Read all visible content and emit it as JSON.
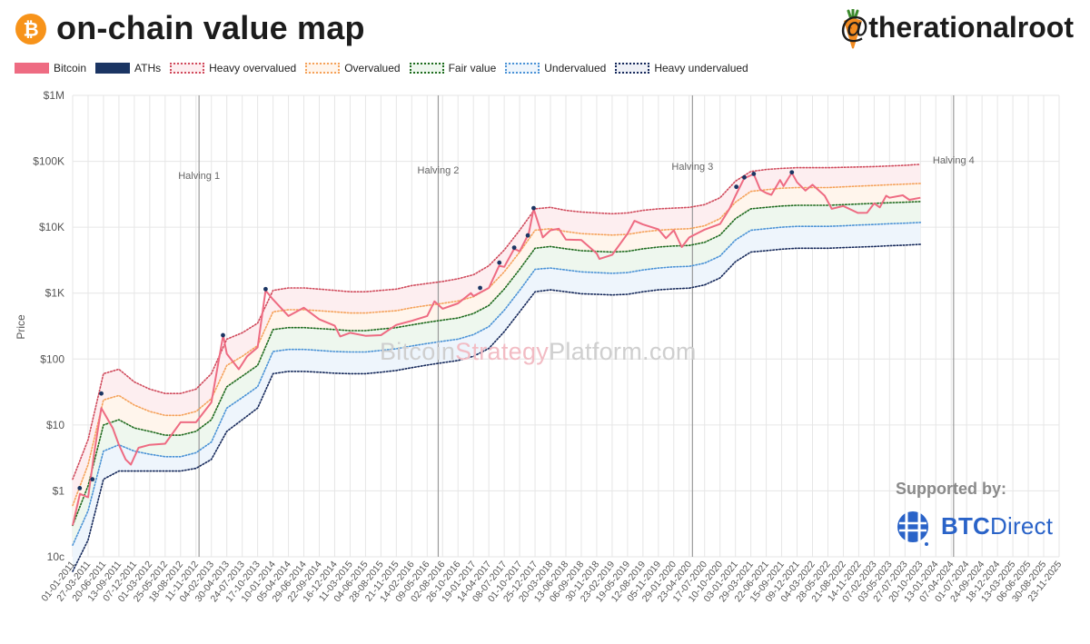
{
  "header": {
    "title": "on-chain value map",
    "handle": "@therationalroot"
  },
  "watermark": {
    "part1": "Bitcoin",
    "part2": "Strategy",
    "part3": "Platform.com"
  },
  "sponsor": {
    "label": "Supported by:",
    "name_bold": "BTC",
    "name_rest": "Direct"
  },
  "colors": {
    "bitcoin": "#ee6b82",
    "aths": "#1b3563",
    "heavy_overvalued": "#d04a5c",
    "overvalued": "#f5a25a",
    "fair_value": "#1e6b1e",
    "undervalued": "#4a92d6",
    "heavy_undervalued": "#15285a",
    "halving_line": "#9a9a9a",
    "grid": "#e6e6e6",
    "orange_logo": "#f7931a"
  },
  "icons": {
    "logo": "bitcoin-icon",
    "handle_icon": "carrot-icon",
    "sponsor_icon": "btc-direct-icon"
  },
  "chart_data": {
    "type": "line",
    "yscale": "log",
    "ylabel": "Price",
    "ylim": [
      0.1,
      1000000
    ],
    "y_ticks": [
      "10c",
      "$1",
      "$10",
      "$100",
      "$1K",
      "$10K",
      "$100K",
      "$1M"
    ],
    "y_tick_values": [
      0.1,
      1,
      10,
      100,
      1000,
      10000,
      100000,
      1000000
    ],
    "x_range": [
      "2011-01-01",
      "2025-11-23"
    ],
    "x_ticks": [
      "01-01-2011",
      "27-03-2011",
      "20-06-2011",
      "13-09-2011",
      "07-12-2011",
      "01-03-2012",
      "25-05-2012",
      "18-08-2012",
      "11-11-2012",
      "04-02-2013",
      "30-04-2013",
      "24-07-2013",
      "17-10-2013",
      "10-01-2014",
      "05-04-2014",
      "29-06-2014",
      "22-09-2014",
      "16-12-2014",
      "11-03-2015",
      "04-06-2015",
      "28-08-2015",
      "21-11-2015",
      "14-02-2016",
      "09-05-2016",
      "02-08-2016",
      "26-10-2016",
      "19-01-2017",
      "14-04-2017",
      "08-07-2017",
      "01-10-2017",
      "25-12-2017",
      "20-03-2018",
      "13-06-2018",
      "06-09-2018",
      "30-11-2018",
      "23-02-2019",
      "19-05-2019",
      "12-08-2019",
      "05-11-2019",
      "29-01-2020",
      "23-04-2020",
      "17-07-2020",
      "10-10-2020",
      "03-01-2021",
      "29-03-2021",
      "22-06-2021",
      "15-09-2021",
      "09-12-2021",
      "04-03-2022",
      "28-05-2022",
      "21-08-2022",
      "14-11-2022",
      "07-02-2023",
      "03-05-2023",
      "27-07-2023",
      "20-10-2023",
      "13-01-2024",
      "07-04-2024",
      "01-07-2024",
      "24-09-2024",
      "18-12-2024",
      "13-03-2025",
      "06-06-2025",
      "30-08-2025",
      "23-11-2025"
    ],
    "legend": [
      "Bitcoin",
      "ATHs",
      "Heavy overvalued",
      "Overvalued",
      "Fair value",
      "Undervalued",
      "Heavy undervalued"
    ],
    "legend_position": "top-left",
    "grid": true,
    "annotations": [
      {
        "label": "Halving 1",
        "date": "2012-11-28"
      },
      {
        "label": "Halving 2",
        "date": "2016-07-09"
      },
      {
        "label": "Halving 3",
        "date": "2020-05-11"
      },
      {
        "label": "Halving 4",
        "date": "2024-04-20"
      }
    ],
    "bands_x": [
      "2011-01-01",
      "2011-03-27",
      "2011-06-20",
      "2011-09-13",
      "2011-12-07",
      "2012-03-01",
      "2012-05-25",
      "2012-08-18",
      "2012-11-11",
      "2013-02-04",
      "2013-04-30",
      "2013-07-24",
      "2013-10-17",
      "2014-01-10",
      "2014-04-05",
      "2014-06-29",
      "2014-09-22",
      "2014-12-16",
      "2015-03-11",
      "2015-06-04",
      "2015-08-28",
      "2015-11-21",
      "2016-02-14",
      "2016-05-09",
      "2016-08-02",
      "2016-10-26",
      "2017-01-19",
      "2017-04-14",
      "2017-07-08",
      "2017-10-01",
      "2017-12-25",
      "2018-03-20",
      "2018-06-13",
      "2018-09-06",
      "2018-11-30",
      "2019-02-23",
      "2019-05-19",
      "2019-08-12",
      "2019-11-05",
      "2020-01-29",
      "2020-04-23",
      "2020-07-17",
      "2020-10-10",
      "2021-01-03",
      "2021-03-29",
      "2021-06-22",
      "2021-09-15",
      "2021-12-09",
      "2022-03-04",
      "2022-05-28",
      "2022-08-21",
      "2022-11-14",
      "2023-02-07",
      "2023-05-03",
      "2023-07-27",
      "2023-10-20"
    ],
    "series": [
      {
        "name": "Heavy overvalued",
        "values": [
          1.5,
          6,
          60,
          70,
          45,
          35,
          30,
          30,
          35,
          60,
          200,
          250,
          350,
          1100,
          1200,
          1200,
          1150,
          1100,
          1050,
          1050,
          1100,
          1150,
          1300,
          1400,
          1500,
          1650,
          1900,
          2600,
          4500,
          9000,
          19000,
          20000,
          18000,
          17000,
          16500,
          16000,
          16500,
          18000,
          19000,
          19500,
          20000,
          22000,
          28000,
          50000,
          70000,
          75000,
          78000,
          80000,
          80000,
          80000,
          81000,
          82000,
          83000,
          85000,
          87000,
          90000
        ]
      },
      {
        "name": "Overvalued",
        "values": [
          0.6,
          2.5,
          24,
          28,
          20,
          16,
          14,
          14,
          16,
          25,
          80,
          110,
          160,
          520,
          560,
          560,
          540,
          520,
          500,
          500,
          520,
          540,
          600,
          650,
          700,
          760,
          880,
          1200,
          2100,
          4200,
          9000,
          9500,
          8600,
          8000,
          7800,
          7600,
          7800,
          8500,
          9000,
          9300,
          9500,
          10500,
          13500,
          24000,
          35000,
          37000,
          39000,
          40000,
          40000,
          40000,
          41000,
          42000,
          43000,
          44000,
          45000,
          46000
        ]
      },
      {
        "name": "Fair value",
        "values": [
          0.3,
          1.2,
          10,
          12,
          9,
          8,
          7,
          7,
          8,
          12,
          38,
          55,
          80,
          280,
          300,
          300,
          290,
          280,
          270,
          270,
          285,
          300,
          330,
          360,
          390,
          420,
          490,
          650,
          1150,
          2300,
          4800,
          5100,
          4700,
          4400,
          4300,
          4200,
          4300,
          4700,
          5000,
          5200,
          5300,
          5900,
          7600,
          13500,
          19000,
          20000,
          21000,
          21500,
          21500,
          21500,
          22000,
          22500,
          23000,
          23500,
          24000,
          24500
        ]
      },
      {
        "name": "Undervalued",
        "values": [
          0.15,
          0.5,
          4,
          5,
          4,
          3.6,
          3.3,
          3.3,
          3.8,
          5.5,
          18,
          26,
          38,
          130,
          140,
          140,
          135,
          130,
          128,
          128,
          135,
          143,
          158,
          172,
          186,
          200,
          235,
          310,
          550,
          1100,
          2300,
          2400,
          2250,
          2100,
          2050,
          2000,
          2050,
          2250,
          2400,
          2500,
          2550,
          2850,
          3650,
          6400,
          9000,
          9500,
          10000,
          10300,
          10300,
          10300,
          10500,
          10800,
          11000,
          11300,
          11500,
          11800
        ]
      },
      {
        "name": "Heavy undervalued",
        "values": [
          0.06,
          0.18,
          1.5,
          2,
          2,
          2,
          2,
          2,
          2.2,
          3,
          8,
          12,
          18,
          60,
          65,
          65,
          63,
          61,
          60,
          60,
          63,
          67,
          74,
          81,
          88,
          95,
          110,
          145,
          260,
          520,
          1050,
          1120,
          1050,
          980,
          960,
          940,
          960,
          1050,
          1120,
          1160,
          1190,
          1330,
          1700,
          3000,
          4200,
          4400,
          4650,
          4800,
          4800,
          4800,
          4900,
          5000,
          5100,
          5250,
          5350,
          5500
        ]
      },
      {
        "name": "Bitcoin",
        "x": [
          "2011-01-01",
          "2011-02-10",
          "2011-03-27",
          "2011-05-01",
          "2011-06-08",
          "2011-07-01",
          "2011-08-10",
          "2011-09-13",
          "2011-10-20",
          "2011-11-18",
          "2011-12-30",
          "2012-03-01",
          "2012-05-25",
          "2012-08-18",
          "2012-11-11",
          "2013-02-04",
          "2013-04-10",
          "2013-04-30",
          "2013-07-05",
          "2013-08-20",
          "2013-10-17",
          "2013-11-30",
          "2014-01-10",
          "2014-04-05",
          "2014-06-29",
          "2014-09-22",
          "2014-12-16",
          "2015-01-15",
          "2015-03-11",
          "2015-06-04",
          "2015-08-28",
          "2015-11-21",
          "2016-02-14",
          "2016-05-09",
          "2016-06-18",
          "2016-08-02",
          "2016-10-26",
          "2017-01-05",
          "2017-01-19",
          "2017-04-14",
          "2017-06-10",
          "2017-07-08",
          "2017-09-01",
          "2017-10-01",
          "2017-11-20",
          "2017-12-17",
          "2018-02-06",
          "2018-03-20",
          "2018-05-05",
          "2018-06-13",
          "2018-09-06",
          "2018-11-30",
          "2018-12-15",
          "2019-02-23",
          "2019-05-19",
          "2019-06-26",
          "2019-08-12",
          "2019-11-05",
          "2019-12-17",
          "2020-01-29",
          "2020-03-13",
          "2020-04-23",
          "2020-07-17",
          "2020-10-10",
          "2020-12-01",
          "2021-01-03",
          "2021-02-20",
          "2021-04-14",
          "2021-05-20",
          "2021-06-22",
          "2021-07-20",
          "2021-09-06",
          "2021-09-25",
          "2021-11-10",
          "2021-12-09",
          "2022-01-24",
          "2022-03-04",
          "2022-05-10",
          "2022-06-18",
          "2022-08-21",
          "2022-11-09",
          "2022-12-30",
          "2023-02-07",
          "2023-03-10",
          "2023-04-14",
          "2023-05-03",
          "2023-07-15",
          "2023-08-20",
          "2023-10-20"
        ],
        "values": [
          0.3,
          0.9,
          0.8,
          4,
          18,
          14,
          9,
          5,
          3,
          2.5,
          4.5,
          5,
          5.2,
          11,
          11,
          22,
          230,
          120,
          70,
          110,
          150,
          1100,
          800,
          450,
          600,
          400,
          320,
          220,
          250,
          225,
          230,
          330,
          380,
          450,
          750,
          580,
          700,
          1000,
          900,
          1200,
          2600,
          2500,
          4700,
          4300,
          8000,
          19000,
          7000,
          9000,
          9500,
          6500,
          6400,
          4000,
          3300,
          3800,
          8000,
          12500,
          11000,
          9300,
          6800,
          9000,
          5000,
          7000,
          9200,
          11200,
          19000,
          30000,
          55000,
          64000,
          37000,
          33000,
          31000,
          52000,
          42000,
          67000,
          48000,
          36000,
          44000,
          30000,
          19000,
          21000,
          16500,
          16600,
          23000,
          20000,
          30000,
          28000,
          30500,
          26000,
          28000
        ]
      },
      {
        "name": "ATHs",
        "x": [
          "2011-02-09",
          "2011-04-20",
          "2011-06-08",
          "2013-04-09",
          "2013-11-30",
          "2017-02-25",
          "2017-06-11",
          "2017-09-01",
          "2017-11-15",
          "2017-12-17",
          "2021-01-08",
          "2021-02-21",
          "2021-04-14",
          "2021-11-10"
        ],
        "values": [
          1.1,
          1.5,
          30,
          230,
          1150,
          1200,
          2900,
          4900,
          7500,
          19500,
          41000,
          57000,
          64500,
          68000
        ]
      }
    ]
  }
}
